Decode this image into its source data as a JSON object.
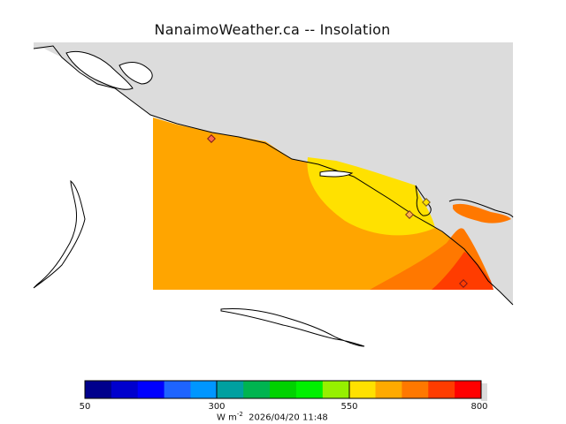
{
  "title": "NanaimoWeather.ca  --  Insolation",
  "colorbar": {
    "min_label": "50",
    "mid1_label": "300",
    "mid2_label": "550",
    "max_label": "800",
    "unit_prefix": "W m",
    "unit_exp": "-2",
    "timestamp": "2026/04/20 11:48",
    "bin_colors": [
      "#00008c",
      "#0000cd",
      "#0000ff",
      "#1e64ff",
      "#0096ff",
      "#00a0a0",
      "#00b450",
      "#00d200",
      "#00f000",
      "#96f000",
      "#ffe100",
      "#ffaa00",
      "#ff7800",
      "#ff3c00",
      "#ff0000"
    ]
  },
  "map": {
    "land_color": "#dcdcdc",
    "field_colors": {
      "orange": "#ffa500",
      "yellow": "#ffe100",
      "dark_orange": "#ff7800",
      "red_orange": "#ff3c00"
    },
    "station_markers": 4
  }
}
